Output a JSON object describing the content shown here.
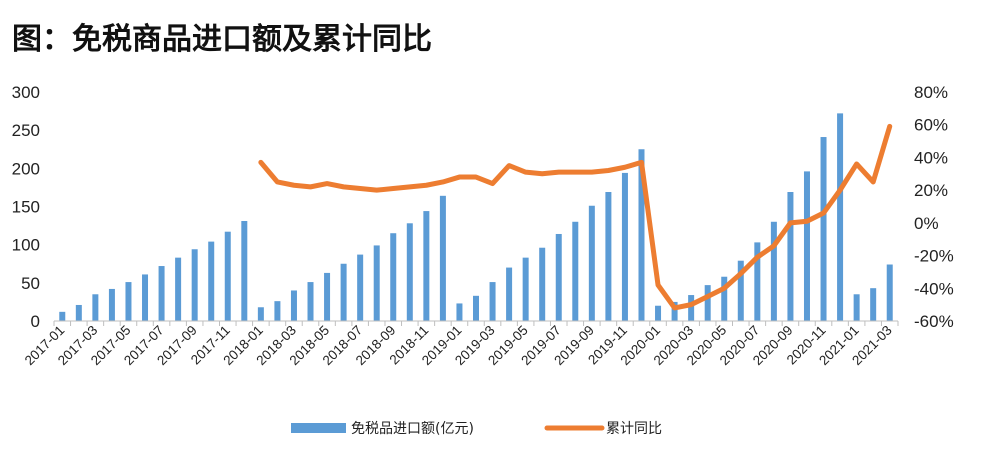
{
  "chart_data": {
    "type": "bar",
    "title": "图：免税商品进口额及累计同比",
    "xlabel": "",
    "ylabel": "",
    "ylim": [
      0,
      300
    ],
    "y_ticks": [
      0,
      50,
      100,
      150,
      200,
      250,
      300
    ],
    "y2lim": [
      -60,
      80
    ],
    "y2_ticks": [
      "-60%",
      "-40%",
      "-20%",
      "0%",
      "20%",
      "40%",
      "60%",
      "80%"
    ],
    "y2_tick_values": [
      -60,
      -40,
      -20,
      0,
      20,
      40,
      60,
      80
    ],
    "categories": [
      "2017-01",
      "2017-02",
      "2017-03",
      "2017-04",
      "2017-05",
      "2017-06",
      "2017-07",
      "2017-08",
      "2017-09",
      "2017-10",
      "2017-11",
      "2017-12",
      "2018-01",
      "2018-02",
      "2018-03",
      "2018-04",
      "2018-05",
      "2018-06",
      "2018-07",
      "2018-08",
      "2018-09",
      "2018-10",
      "2018-11",
      "2018-12",
      "2019-01",
      "2019-02",
      "2019-03",
      "2019-04",
      "2019-05",
      "2019-06",
      "2019-07",
      "2019-08",
      "2019-09",
      "2019-10",
      "2019-11",
      "2019-12",
      "2020-01",
      "2020-02",
      "2020-03",
      "2020-04",
      "2020-05",
      "2020-06",
      "2020-07",
      "2020-08",
      "2020-09",
      "2020-10",
      "2020-11",
      "2020-12",
      "2021-01",
      "2021-02",
      "2021-03"
    ],
    "x_tick_labels": [
      "2017-01",
      "2017-03",
      "2017-05",
      "2017-07",
      "2017-09",
      "2017-11",
      "2018-01",
      "2018-03",
      "2018-05",
      "2018-07",
      "2018-09",
      "2018-11",
      "2019-01",
      "2019-03",
      "2019-05",
      "2019-07",
      "2019-09",
      "2019-11",
      "2020-01",
      "2020-03",
      "2020-05",
      "2020-07",
      "2020-09",
      "2020-11",
      "2021-01",
      "2021-03"
    ],
    "series": [
      {
        "name": "免税品进口额(亿元)",
        "type": "bar",
        "axis": "left",
        "color": "#5B9BD5",
        "values": [
          12,
          21,
          35,
          42,
          51,
          61,
          72,
          83,
          94,
          104,
          117,
          131,
          18,
          26,
          40,
          51,
          63,
          75,
          87,
          99,
          115,
          128,
          144,
          164,
          23,
          33,
          51,
          70,
          83,
          96,
          114,
          130,
          151,
          169,
          194,
          225,
          20,
          25,
          34,
          47,
          58,
          79,
          103,
          130,
          169,
          196,
          241,
          272,
          35,
          43,
          74
        ]
      },
      {
        "name": "累计同比",
        "type": "line",
        "axis": "right",
        "color": "#ED7D31",
        "values": [
          null,
          null,
          null,
          null,
          null,
          null,
          null,
          null,
          null,
          null,
          null,
          null,
          37,
          25,
          23,
          22,
          24,
          22,
          21,
          20,
          21,
          22,
          23,
          25,
          28,
          28,
          24,
          35,
          31,
          30,
          31,
          31,
          31,
          32,
          34,
          37,
          -38,
          -52,
          -50,
          -45,
          -40,
          -31,
          -21,
          -14,
          0,
          1,
          6,
          20,
          36,
          25,
          59
        ]
      }
    ],
    "legend": {
      "position": "bottom",
      "items": [
        "免税品进口额(亿元)",
        "累计同比"
      ]
    },
    "grid": false
  }
}
